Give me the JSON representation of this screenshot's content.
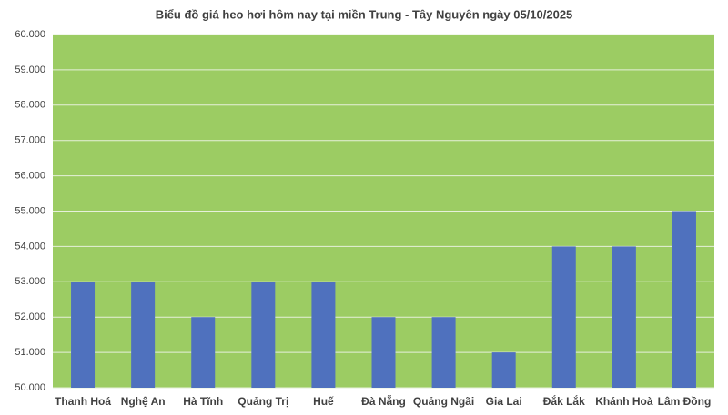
{
  "chart_data": {
    "type": "bar",
    "title": "Biểu đồ giá heo hơi hôm nay tại miền Trung - Tây Nguyên ngày 05/10/2025",
    "categories": [
      "Thanh Hoá",
      "Nghệ An",
      "Hà Tĩnh",
      "Quảng Trị",
      "Huế",
      "Đà Nẵng",
      "Quảng Ngãi",
      "Gia Lai",
      "Đắk Lắk",
      "Khánh Hoà",
      "Lâm Đồng"
    ],
    "values": [
      53000,
      53000,
      52000,
      53000,
      53000,
      52000,
      52000,
      51000,
      54000,
      54000,
      55000
    ],
    "color": "#4f71be",
    "ylim": [
      50000,
      60000
    ],
    "yticks": [
      {
        "value": 50000,
        "label": "50.000"
      },
      {
        "value": 51000,
        "label": "51.000"
      },
      {
        "value": 52000,
        "label": "52.000"
      },
      {
        "value": 53000,
        "label": "53.000"
      },
      {
        "value": 54000,
        "label": "54.000"
      },
      {
        "value": 55000,
        "label": "55.000"
      },
      {
        "value": 56000,
        "label": "56.000"
      },
      {
        "value": 57000,
        "label": "57.000"
      },
      {
        "value": 58000,
        "label": "58.000"
      },
      {
        "value": 59000,
        "label": "59.000"
      },
      {
        "value": 60000,
        "label": "60.000"
      }
    ],
    "grid": true
  }
}
